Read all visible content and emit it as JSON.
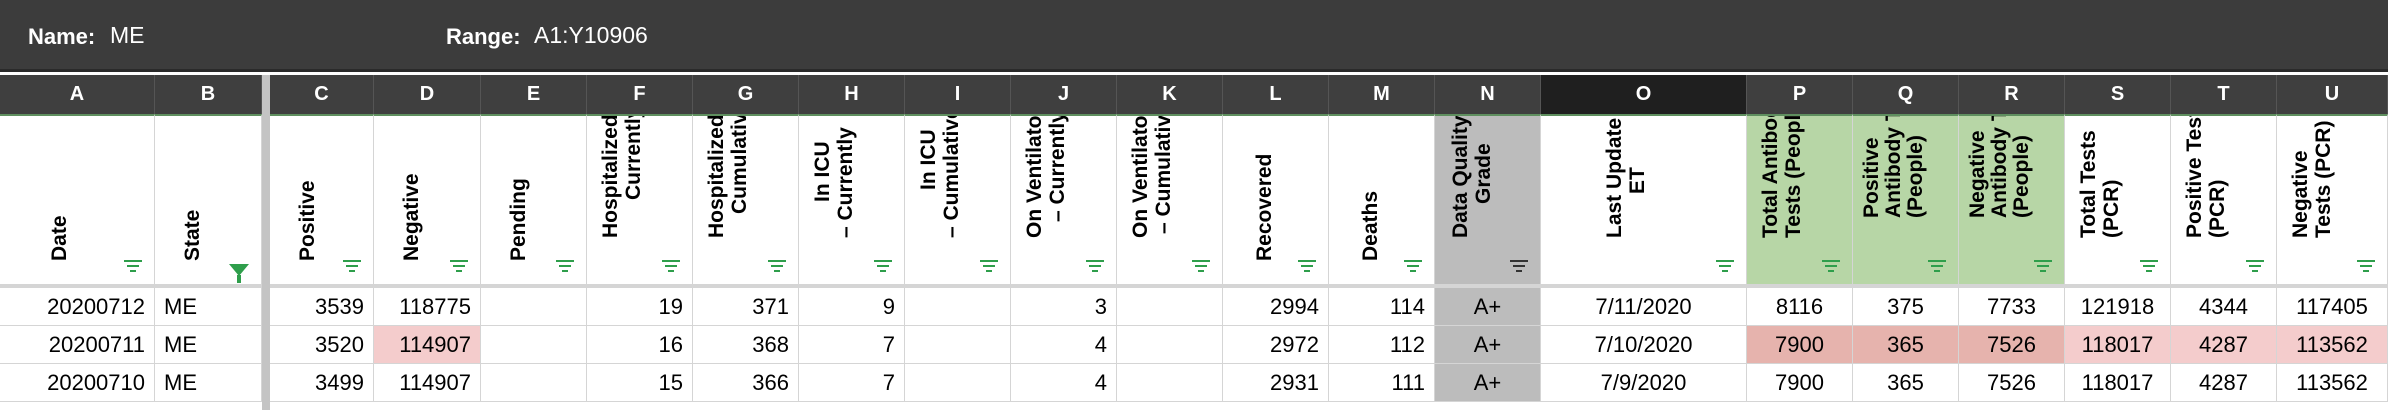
{
  "name_box": {
    "label": "Name:",
    "value": "ME"
  },
  "range_box": {
    "label": "Range:",
    "value": "A1:Y10906"
  },
  "columns": [
    "A",
    "B",
    "C",
    "D",
    "E",
    "F",
    "G",
    "H",
    "I",
    "J",
    "K",
    "L",
    "M",
    "N",
    "O",
    "P",
    "Q",
    "R",
    "S",
    "T",
    "U"
  ],
  "headers": {
    "A": "Date",
    "B": "State",
    "C": "Positive",
    "D": "Negative",
    "E": "Pending",
    "F1": "Hospitalized –",
    "F2": "Currently",
    "G1": "Hospitalized –",
    "G2": "Cumulative",
    "H1": "In ICU",
    "H2": "– Currently",
    "I1": "In ICU",
    "I2": "– Cumulative",
    "J1": "On Ventilator",
    "J2": "– Currently",
    "K1": "On Ventilator",
    "K2": "– Cumulative",
    "L": "Recovered",
    "M": "Deaths",
    "N1": "Data Quality",
    "N2": "Grade",
    "O1": "Last Update",
    "O2": "ET",
    "P1": "Total Antibody",
    "P2": "Tests (People)",
    "Q1": "Positive",
    "Q2": "Antibody Tests",
    "Q3": "(People)",
    "R1": "Negative",
    "R2": "Antibody Tests",
    "R3": "(People)",
    "S1": "Total Tests",
    "S2": "(PCR)",
    "T1": "Positive Tests",
    "T2": "(PCR)",
    "U1": "Negative",
    "U2": "Tests (PCR)"
  },
  "rows": [
    {
      "date": "20200712",
      "state": "ME",
      "positive": "3539",
      "negative": "118775",
      "pending": "",
      "hosp_cur": "19",
      "hosp_cum": "371",
      "icu_cur": "9",
      "icu_cum": "",
      "vent_cur": "3",
      "vent_cum": "",
      "recovered": "2994",
      "deaths": "114",
      "grade": "A+",
      "last_update": "7/11/2020",
      "ab_total": "8116",
      "ab_pos": "375",
      "ab_neg": "7733",
      "pcr_total": "121918",
      "pcr_pos": "4344",
      "pcr_neg": "117405"
    },
    {
      "date": "20200711",
      "state": "ME",
      "positive": "3520",
      "negative": "114907",
      "pending": "",
      "hosp_cur": "16",
      "hosp_cum": "368",
      "icu_cur": "7",
      "icu_cum": "",
      "vent_cur": "4",
      "vent_cum": "",
      "recovered": "2972",
      "deaths": "112",
      "grade": "A+",
      "last_update": "7/10/2020",
      "ab_total": "7900",
      "ab_pos": "365",
      "ab_neg": "7526",
      "pcr_total": "118017",
      "pcr_pos": "4287",
      "pcr_neg": "113562"
    },
    {
      "date": "20200710",
      "state": "ME",
      "positive": "3499",
      "negative": "114907",
      "pending": "",
      "hosp_cur": "15",
      "hosp_cum": "366",
      "icu_cur": "7",
      "icu_cum": "",
      "vent_cur": "4",
      "vent_cum": "",
      "recovered": "2931",
      "deaths": "111",
      "grade": "A+",
      "last_update": "7/9/2020",
      "ab_total": "7900",
      "ab_pos": "365",
      "ab_neg": "7526",
      "pcr_total": "118017",
      "pcr_pos": "4287",
      "pcr_neg": "113562"
    }
  ],
  "colors": {
    "topbar": "#3c3c3c",
    "filter_green": "#2e9e4b",
    "grade_gray": "#bcbcbc",
    "antibody_green": "#b7d6a6",
    "highlight_pink": "#f4cccc"
  }
}
